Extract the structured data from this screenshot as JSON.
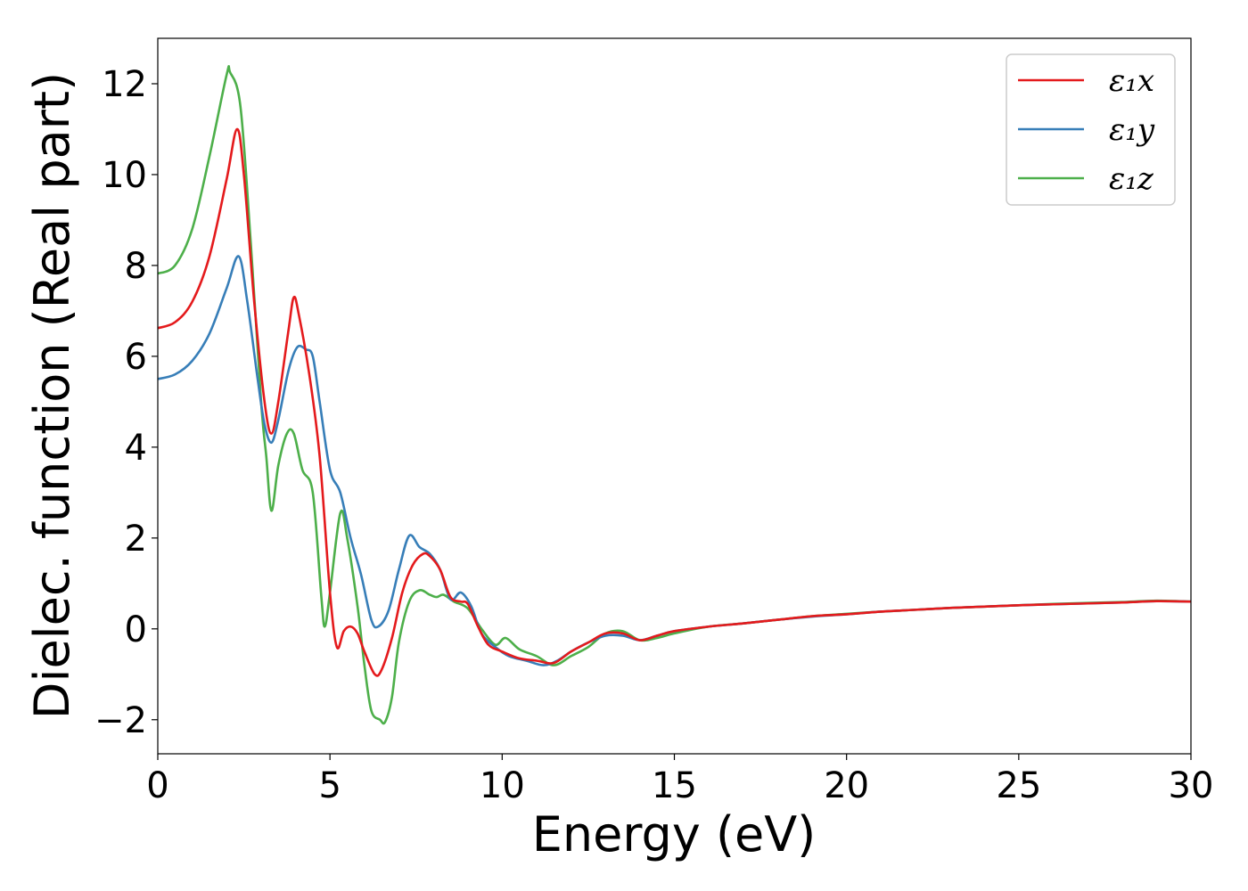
{
  "chart_data": {
    "type": "line",
    "title": "",
    "xlabel": "Energy (eV)",
    "ylabel": "Dielec. function (Real part)",
    "xlim": [
      0,
      30
    ],
    "ylim": [
      -2.75,
      13
    ],
    "xticks": [
      0,
      5,
      10,
      15,
      20,
      25,
      30
    ],
    "xtick_labels": [
      "0",
      "5",
      "10",
      "15",
      "20",
      "25",
      "30"
    ],
    "yticks": [
      -2,
      0,
      2,
      4,
      6,
      8,
      10,
      12
    ],
    "ytick_labels": [
      "−2",
      "0",
      "2",
      "4",
      "6",
      "8",
      "10",
      "12"
    ],
    "grid": false,
    "legend_position": "top-right",
    "series": [
      {
        "name": "ε₁x",
        "color": "#e41a1c",
        "points": [
          [
            0,
            6.62
          ],
          [
            0.5,
            6.75
          ],
          [
            1.0,
            7.2
          ],
          [
            1.5,
            8.2
          ],
          [
            2.0,
            9.9
          ],
          [
            2.3,
            11.0
          ],
          [
            2.5,
            10.0
          ],
          [
            2.8,
            7.2
          ],
          [
            3.1,
            5.0
          ],
          [
            3.3,
            4.3
          ],
          [
            3.5,
            5.0
          ],
          [
            3.8,
            6.6
          ],
          [
            3.95,
            7.3
          ],
          [
            4.1,
            6.9
          ],
          [
            4.4,
            5.6
          ],
          [
            4.7,
            3.8
          ],
          [
            5.0,
            0.8
          ],
          [
            5.2,
            -0.4
          ],
          [
            5.4,
            -0.05
          ],
          [
            5.6,
            0.05
          ],
          [
            5.8,
            -0.1
          ],
          [
            6.0,
            -0.5
          ],
          [
            6.3,
            -1.0
          ],
          [
            6.5,
            -0.9
          ],
          [
            6.8,
            -0.2
          ],
          [
            7.1,
            0.8
          ],
          [
            7.4,
            1.4
          ],
          [
            7.7,
            1.65
          ],
          [
            7.9,
            1.6
          ],
          [
            8.2,
            1.3
          ],
          [
            8.5,
            0.7
          ],
          [
            8.8,
            0.6
          ],
          [
            9.0,
            0.55
          ],
          [
            9.3,
            0.05
          ],
          [
            9.6,
            -0.35
          ],
          [
            10.0,
            -0.5
          ],
          [
            10.5,
            -0.65
          ],
          [
            11.0,
            -0.7
          ],
          [
            11.5,
            -0.75
          ],
          [
            12.0,
            -0.5
          ],
          [
            12.5,
            -0.3
          ],
          [
            13.0,
            -0.1
          ],
          [
            13.5,
            -0.1
          ],
          [
            14.0,
            -0.25
          ],
          [
            14.5,
            -0.15
          ],
          [
            15.0,
            -0.05
          ],
          [
            16.0,
            0.05
          ],
          [
            17.0,
            0.12
          ],
          [
            18.0,
            0.2
          ],
          [
            19.0,
            0.28
          ],
          [
            20.0,
            0.32
          ],
          [
            21.0,
            0.38
          ],
          [
            22.0,
            0.42
          ],
          [
            23.0,
            0.46
          ],
          [
            24.0,
            0.49
          ],
          [
            25.0,
            0.52
          ],
          [
            26.0,
            0.54
          ],
          [
            27.0,
            0.56
          ],
          [
            28.0,
            0.58
          ],
          [
            29.0,
            0.61
          ],
          [
            30.0,
            0.6
          ]
        ]
      },
      {
        "name": "ε₁y",
        "color": "#377eb8",
        "points": [
          [
            0,
            5.5
          ],
          [
            0.5,
            5.6
          ],
          [
            1.0,
            5.9
          ],
          [
            1.5,
            6.5
          ],
          [
            2.0,
            7.5
          ],
          [
            2.35,
            8.2
          ],
          [
            2.6,
            7.2
          ],
          [
            2.9,
            5.5
          ],
          [
            3.1,
            4.5
          ],
          [
            3.3,
            4.1
          ],
          [
            3.5,
            4.6
          ],
          [
            3.8,
            5.7
          ],
          [
            4.05,
            6.2
          ],
          [
            4.3,
            6.15
          ],
          [
            4.5,
            6.0
          ],
          [
            4.7,
            5.0
          ],
          [
            5.0,
            3.5
          ],
          [
            5.3,
            3.0
          ],
          [
            5.6,
            2.0
          ],
          [
            5.9,
            1.2
          ],
          [
            6.2,
            0.2
          ],
          [
            6.4,
            0.05
          ],
          [
            6.7,
            0.4
          ],
          [
            7.0,
            1.3
          ],
          [
            7.3,
            2.05
          ],
          [
            7.6,
            1.8
          ],
          [
            7.9,
            1.65
          ],
          [
            8.2,
            1.3
          ],
          [
            8.5,
            0.65
          ],
          [
            8.8,
            0.8
          ],
          [
            9.1,
            0.5
          ],
          [
            9.4,
            -0.1
          ],
          [
            9.8,
            -0.4
          ],
          [
            10.2,
            -0.6
          ],
          [
            10.7,
            -0.7
          ],
          [
            11.2,
            -0.8
          ],
          [
            11.6,
            -0.7
          ],
          [
            12.0,
            -0.5
          ],
          [
            12.5,
            -0.3
          ],
          [
            13.0,
            -0.15
          ],
          [
            13.5,
            -0.15
          ],
          [
            14.0,
            -0.25
          ],
          [
            14.5,
            -0.15
          ],
          [
            15.0,
            -0.05
          ],
          [
            16.0,
            0.05
          ],
          [
            17.0,
            0.12
          ],
          [
            18.0,
            0.2
          ],
          [
            19.0,
            0.27
          ],
          [
            20.0,
            0.32
          ],
          [
            21.0,
            0.38
          ],
          [
            22.0,
            0.42
          ],
          [
            23.0,
            0.46
          ],
          [
            24.0,
            0.49
          ],
          [
            25.0,
            0.52
          ],
          [
            26.0,
            0.54
          ],
          [
            27.0,
            0.56
          ],
          [
            28.0,
            0.58
          ],
          [
            29.0,
            0.61
          ],
          [
            30.0,
            0.6
          ]
        ]
      },
      {
        "name": "ε₁z",
        "color": "#4daf4a",
        "points": [
          [
            0,
            7.82
          ],
          [
            0.5,
            8.0
          ],
          [
            1.0,
            8.8
          ],
          [
            1.5,
            10.4
          ],
          [
            2.0,
            12.2
          ],
          [
            2.1,
            12.25
          ],
          [
            2.4,
            11.5
          ],
          [
            2.7,
            8.5
          ],
          [
            3.0,
            5.0
          ],
          [
            3.15,
            3.8
          ],
          [
            3.3,
            2.6
          ],
          [
            3.5,
            3.6
          ],
          [
            3.75,
            4.3
          ],
          [
            3.95,
            4.3
          ],
          [
            4.2,
            3.5
          ],
          [
            4.5,
            3.0
          ],
          [
            4.75,
            0.7
          ],
          [
            4.85,
            0.05
          ],
          [
            5.0,
            0.8
          ],
          [
            5.3,
            2.55
          ],
          [
            5.5,
            2.0
          ],
          [
            5.8,
            0.5
          ],
          [
            6.0,
            -0.8
          ],
          [
            6.2,
            -1.8
          ],
          [
            6.45,
            -2.0
          ],
          [
            6.6,
            -2.05
          ],
          [
            6.8,
            -1.5
          ],
          [
            7.0,
            -0.3
          ],
          [
            7.3,
            0.6
          ],
          [
            7.6,
            0.85
          ],
          [
            7.9,
            0.75
          ],
          [
            8.1,
            0.7
          ],
          [
            8.3,
            0.75
          ],
          [
            8.6,
            0.6
          ],
          [
            9.0,
            0.45
          ],
          [
            9.4,
            0.0
          ],
          [
            9.8,
            -0.35
          ],
          [
            10.1,
            -0.2
          ],
          [
            10.5,
            -0.45
          ],
          [
            11.0,
            -0.6
          ],
          [
            11.5,
            -0.8
          ],
          [
            12.0,
            -0.6
          ],
          [
            12.5,
            -0.4
          ],
          [
            13.0,
            -0.1
          ],
          [
            13.5,
            -0.05
          ],
          [
            14.0,
            -0.25
          ],
          [
            14.5,
            -0.2
          ],
          [
            15.0,
            -0.1
          ],
          [
            16.0,
            0.05
          ],
          [
            17.0,
            0.12
          ],
          [
            18.0,
            0.2
          ],
          [
            19.0,
            0.28
          ],
          [
            20.0,
            0.33
          ],
          [
            21.0,
            0.38
          ],
          [
            22.0,
            0.42
          ],
          [
            23.0,
            0.46
          ],
          [
            24.0,
            0.49
          ],
          [
            25.0,
            0.52
          ],
          [
            26.0,
            0.55
          ],
          [
            27.0,
            0.57
          ],
          [
            28.0,
            0.59
          ],
          [
            29.0,
            0.62
          ],
          [
            30.0,
            0.6
          ]
        ]
      }
    ]
  }
}
